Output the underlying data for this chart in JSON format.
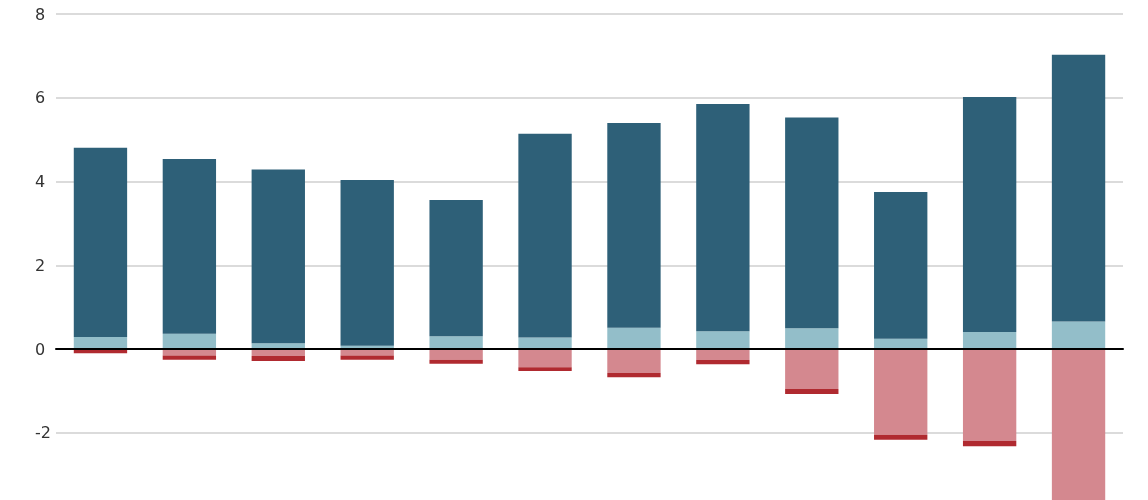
{
  "chart_data": {
    "type": "bar",
    "stacked": true,
    "categories": [
      null,
      null,
      null,
      null,
      null,
      null,
      null,
      null,
      null,
      null,
      null,
      null
    ],
    "series": [
      {
        "color": "#93bec9",
        "values": [
          0.29,
          0.37,
          0.14,
          0.08,
          0.31,
          0.28,
          0.51,
          0.43,
          0.5,
          0.25,
          0.41,
          0.66
        ]
      },
      {
        "color": "#2e6078",
        "values": [
          4.52,
          4.17,
          4.15,
          3.96,
          3.25,
          4.86,
          4.89,
          5.42,
          5.03,
          3.5,
          5.61,
          6.37
        ]
      },
      {
        "color": "#d4888f",
        "values": [
          0,
          -0.15,
          -0.16,
          -0.15,
          -0.25,
          -0.43,
          -0.57,
          -0.26,
          -0.95,
          -2.04,
          -2.19,
          -3.6
        ]
      },
      {
        "color": "#b02a30",
        "values": [
          -0.1,
          -0.1,
          -0.12,
          -0.1,
          -0.1,
          -0.09,
          -0.1,
          -0.1,
          -0.12,
          -0.12,
          -0.13,
          null
        ]
      }
    ],
    "ylim": [
      -3.6,
      8
    ],
    "yticks": [
      -2,
      0,
      2,
      4,
      6,
      8
    ],
    "grid": "y",
    "tick_labels": "y"
  }
}
